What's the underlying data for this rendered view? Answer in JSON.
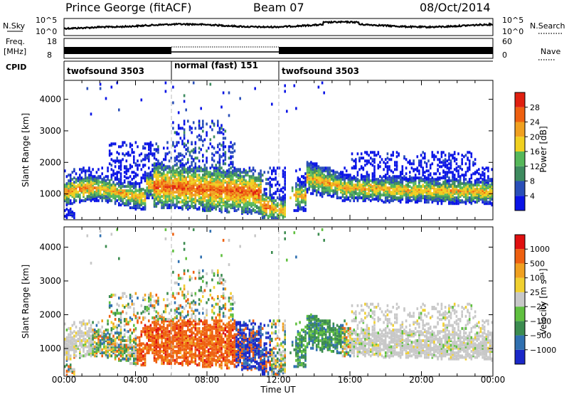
{
  "header": {
    "station": "Prince George (fitACF)",
    "beam": "Beam 07",
    "date": "08/Oct/2014"
  },
  "side_labels": {
    "nsky": "N.Sky",
    "freq_line1": "Freq.",
    "freq_line2": "[MHz]",
    "cpid": "CPID",
    "nsearch": "N.Search",
    "nave": "Nave"
  },
  "noise_axis": {
    "left_top": "10^5",
    "left_bottom": "10^0",
    "right_top": "10^5",
    "right_bottom": "10^0"
  },
  "freq_axis": {
    "left_ticks": [
      "18",
      "8"
    ],
    "right_ticks": [
      "60",
      "0"
    ]
  },
  "cpid_segments": [
    {
      "label": "twofsound 3503",
      "start_h": 0,
      "end_h": 6
    },
    {
      "label": "normal (fast) 151",
      "start_h": 6,
      "end_h": 12
    },
    {
      "label": "twofsound 3503",
      "start_h": 12,
      "end_h": 24
    }
  ],
  "chart_data": [
    {
      "type": "heatmap",
      "name": "power",
      "ylabel": "Slant Range [km]",
      "xlabel": "Time UT",
      "x_ticks": [
        "00:00",
        "04:00",
        "08:00",
        "12:00",
        "16:00",
        "20:00",
        "00:00"
      ],
      "xlim_hours": [
        0,
        24
      ],
      "ylim_km": [
        180,
        4600
      ],
      "y_ticks": [
        1000,
        2000,
        3000,
        4000
      ],
      "colorbar": {
        "label": "Power [dB]",
        "ticks": [
          "4",
          "8",
          "12",
          "16",
          "20",
          "24",
          "28"
        ],
        "colors": [
          "#0a14e6",
          "#2a4fb8",
          "#3e8b5f",
          "#56b85a",
          "#f0d020",
          "#f0a020",
          "#ee6010",
          "#e02010"
        ]
      }
    },
    {
      "type": "heatmap",
      "name": "velocity",
      "ylabel": "Slant Range [km]",
      "xlabel": "Time UT",
      "x_ticks": [
        "00:00",
        "04:00",
        "08:00",
        "12:00",
        "16:00",
        "20:00",
        "00:00"
      ],
      "xlim_hours": [
        0,
        24
      ],
      "ylim_km": [
        180,
        4600
      ],
      "y_ticks": [
        1000,
        2000,
        3000,
        4000
      ],
      "colorbar": {
        "label": "Velocity [m s⁻¹]",
        "ticks": [
          "1000",
          "500",
          "100",
          "25",
          "−25",
          "−100",
          "−500",
          "−1000"
        ],
        "colors": [
          "#1a28c8",
          "#3070b0",
          "#3c8c50",
          "#60c040",
          "#c8c8c8",
          "#f0d030",
          "#f0a020",
          "#ee6010",
          "#e01010"
        ]
      }
    }
  ]
}
